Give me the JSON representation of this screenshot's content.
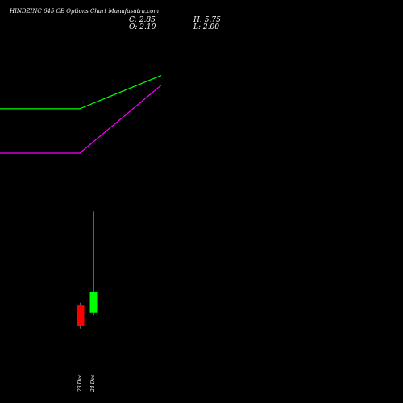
{
  "chart_data": {
    "type": "candlestick",
    "title": "HINDZINC 645 CE Options Chart Munafasutra.com",
    "ohlc_readout": {
      "close_label": "C:",
      "close": "2.85",
      "high_label": "H:",
      "high": "5.75",
      "open_label": "O:",
      "open": "2.10",
      "low_label": "L:",
      "low": "2.00"
    },
    "categories": [
      "23 Dec",
      "24 Dec"
    ],
    "candles": [
      {
        "date": "23 Dec",
        "open": 2.35,
        "high": 2.45,
        "low": 1.52,
        "close": 1.62
      },
      {
        "date": "24 Dec",
        "open": 2.1,
        "high": 5.75,
        "low": 2.0,
        "close": 2.85
      }
    ],
    "overlay_lines": [
      {
        "color": "#00ff00",
        "values": [
          9.45,
          9.45,
          10.65
        ]
      },
      {
        "color": "#ff00ff",
        "values": [
          7.85,
          7.85,
          10.3
        ]
      }
    ],
    "colors": {
      "bull": "#00ff00",
      "bear": "#ff0000",
      "background": "#000000",
      "text": "#ffffff"
    },
    "grid": false
  }
}
